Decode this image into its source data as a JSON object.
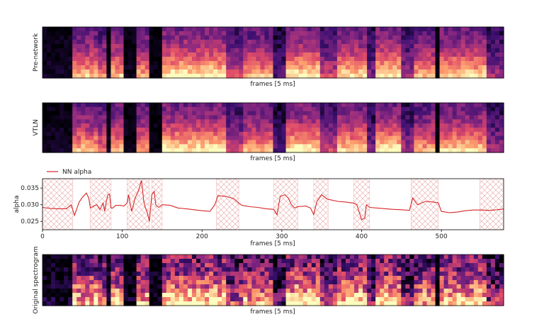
{
  "colors": {
    "alpha_line": "#d62728",
    "hatch": "#e8a0a0",
    "colormap": [
      "#000004",
      "#3b0f70",
      "#8c2981",
      "#de4968",
      "#fe9f6d",
      "#fcfdbf"
    ]
  },
  "chart_data": [
    {
      "type": "heatmap",
      "panel": "pre-network",
      "xlabel": "frames [5 ms]",
      "ylabel": "Pre-network",
      "colormap": "magma"
    },
    {
      "type": "heatmap",
      "panel": "vtln",
      "xlabel": "frames [5 ms]",
      "ylabel": "VTLN",
      "colormap": "magma"
    },
    {
      "type": "line",
      "panel": "alpha",
      "xlabel": "frames [5 ms]",
      "ylabel": "alpha",
      "xlim": [
        0,
        578
      ],
      "ylim": [
        0.0225,
        0.0378
      ],
      "xticks": [
        0,
        100,
        200,
        300,
        400,
        500
      ],
      "xtick_labels": [
        "0",
        "100",
        "200",
        "300",
        "400",
        "500"
      ],
      "yticks": [
        0.025,
        0.03,
        0.035
      ],
      "ytick_labels": [
        "0.025",
        "0.030",
        "0.035"
      ],
      "legend": {
        "label": "NN alpha",
        "location": "upper-left"
      },
      "grid": false,
      "hatched_regions": [
        [
          0,
          38
        ],
        [
          60,
          86
        ],
        [
          106,
          134
        ],
        [
          137,
          150
        ],
        [
          218,
          246
        ],
        [
          290,
          320
        ],
        [
          340,
          358
        ],
        [
          390,
          410
        ],
        [
          462,
          496
        ],
        [
          548,
          578
        ]
      ],
      "series": [
        {
          "name": "NN alpha",
          "x": [
            0,
            10,
            20,
            30,
            36,
            40,
            46,
            50,
            55,
            58,
            60,
            64,
            68,
            72,
            76,
            78,
            80,
            82,
            84,
            86,
            88,
            92,
            98,
            102,
            106,
            108,
            110,
            112,
            116,
            120,
            124,
            127,
            129,
            131,
            134,
            137,
            140,
            142,
            144,
            146,
            150,
            160,
            170,
            180,
            190,
            200,
            210,
            216,
            220,
            230,
            240,
            246,
            250,
            260,
            270,
            280,
            290,
            294,
            298,
            304,
            308,
            312,
            316,
            320,
            330,
            336,
            340,
            344,
            350,
            356,
            360,
            370,
            380,
            390,
            394,
            400,
            404,
            406,
            410,
            420,
            430,
            440,
            450,
            460,
            464,
            470,
            480,
            490,
            496,
            500,
            510,
            520,
            530,
            540,
            550,
            560,
            570,
            578
          ],
          "y": [
            0.0292,
            0.0289,
            0.0288,
            0.0288,
            0.03,
            0.0268,
            0.0308,
            0.0322,
            0.0335,
            0.032,
            0.029,
            0.0296,
            0.03,
            0.0285,
            0.0305,
            0.028,
            0.031,
            0.033,
            0.0332,
            0.029,
            0.029,
            0.0298,
            0.0298,
            0.0296,
            0.0305,
            0.033,
            0.03,
            0.028,
            0.032,
            0.034,
            0.0373,
            0.031,
            0.029,
            0.028,
            0.025,
            0.033,
            0.034,
            0.03,
            0.0295,
            0.0292,
            0.03,
            0.0298,
            0.029,
            0.0288,
            0.0285,
            0.0282,
            0.028,
            0.03,
            0.0327,
            0.0325,
            0.0318,
            0.0305,
            0.0298,
            0.0294,
            0.0292,
            0.0288,
            0.0286,
            0.027,
            0.0325,
            0.033,
            0.032,
            0.03,
            0.029,
            0.0294,
            0.0296,
            0.029,
            0.027,
            0.031,
            0.033,
            0.0318,
            0.0315,
            0.031,
            0.0308,
            0.0305,
            0.03,
            0.0255,
            0.026,
            0.03,
            0.0292,
            0.029,
            0.0288,
            0.0286,
            0.0285,
            0.0283,
            0.032,
            0.03,
            0.031,
            0.0308,
            0.0306,
            0.028,
            0.0276,
            0.0278,
            0.0282,
            0.0284,
            0.0284,
            0.0283,
            0.0285,
            0.0287
          ]
        }
      ]
    },
    {
      "type": "heatmap",
      "panel": "original",
      "xlabel": "frames [5 ms]",
      "ylabel": "Original spectrogram",
      "colormap": "magma"
    }
  ]
}
